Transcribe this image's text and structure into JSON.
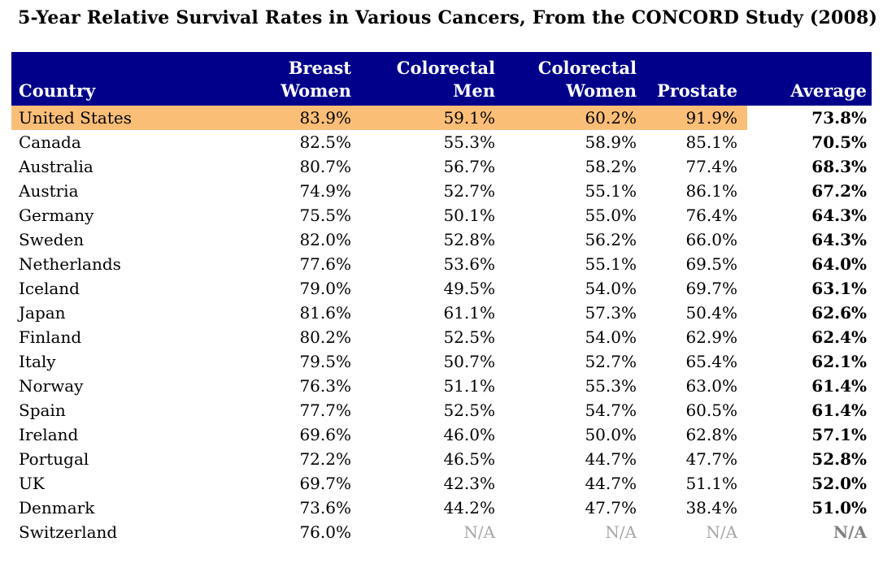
{
  "title": "5-Year Relative Survival Rates in Various Cancers, From the CONCORD Study (2008)",
  "colors": {
    "header_bg": "#00008B",
    "header_text": "#FFFFFF",
    "highlight_row_bg": "#FBBE77",
    "na_text": "#A6A6A6",
    "na_average_text": "#808080",
    "body_text": "#000000"
  },
  "chart_data": {
    "type": "table",
    "title": "5-Year Relative Survival Rates in Various Cancers, From the CONCORD Study (2008)",
    "columns": [
      {
        "key": "country",
        "lines": [
          "Country"
        ]
      },
      {
        "key": "breast-women",
        "lines": [
          "Breast",
          "Women"
        ]
      },
      {
        "key": "colorectal-men",
        "lines": [
          "Colorectal",
          "Men"
        ]
      },
      {
        "key": "colorectal-women",
        "lines": [
          "Colorectal",
          "Women"
        ]
      },
      {
        "key": "prostate",
        "lines": [
          "Prostate"
        ]
      },
      {
        "key": "average",
        "lines": [
          "Average"
        ]
      }
    ],
    "rows": [
      {
        "country": "United States",
        "values": [
          "83.9%",
          "59.1%",
          "60.2%",
          "91.9%",
          "73.8%"
        ],
        "highlight": true
      },
      {
        "country": "Canada",
        "values": [
          "82.5%",
          "55.3%",
          "58.9%",
          "85.1%",
          "70.5%"
        ],
        "highlight": false
      },
      {
        "country": "Australia",
        "values": [
          "80.7%",
          "56.7%",
          "58.2%",
          "77.4%",
          "68.3%"
        ],
        "highlight": false
      },
      {
        "country": "Austria",
        "values": [
          "74.9%",
          "52.7%",
          "55.1%",
          "86.1%",
          "67.2%"
        ],
        "highlight": false
      },
      {
        "country": "Germany",
        "values": [
          "75.5%",
          "50.1%",
          "55.0%",
          "76.4%",
          "64.3%"
        ],
        "highlight": false
      },
      {
        "country": "Sweden",
        "values": [
          "82.0%",
          "52.8%",
          "56.2%",
          "66.0%",
          "64.3%"
        ],
        "highlight": false
      },
      {
        "country": "Netherlands",
        "values": [
          "77.6%",
          "53.6%",
          "55.1%",
          "69.5%",
          "64.0%"
        ],
        "highlight": false
      },
      {
        "country": "Iceland",
        "values": [
          "79.0%",
          "49.5%",
          "54.0%",
          "69.7%",
          "63.1%"
        ],
        "highlight": false
      },
      {
        "country": "Japan",
        "values": [
          "81.6%",
          "61.1%",
          "57.3%",
          "50.4%",
          "62.6%"
        ],
        "highlight": false
      },
      {
        "country": "Finland",
        "values": [
          "80.2%",
          "52.5%",
          "54.0%",
          "62.9%",
          "62.4%"
        ],
        "highlight": false
      },
      {
        "country": "Italy",
        "values": [
          "79.5%",
          "50.7%",
          "52.7%",
          "65.4%",
          "62.1%"
        ],
        "highlight": false
      },
      {
        "country": "Norway",
        "values": [
          "76.3%",
          "51.1%",
          "55.3%",
          "63.0%",
          "61.4%"
        ],
        "highlight": false
      },
      {
        "country": "Spain",
        "values": [
          "77.7%",
          "52.5%",
          "54.7%",
          "60.5%",
          "61.4%"
        ],
        "highlight": false
      },
      {
        "country": "Ireland",
        "values": [
          "69.6%",
          "46.0%",
          "50.0%",
          "62.8%",
          "57.1%"
        ],
        "highlight": false
      },
      {
        "country": "Portugal",
        "values": [
          "72.2%",
          "46.5%",
          "44.7%",
          "47.7%",
          "52.8%"
        ],
        "highlight": false
      },
      {
        "country": "UK",
        "values": [
          "69.7%",
          "42.3%",
          "44.7%",
          "51.1%",
          "52.0%"
        ],
        "highlight": false
      },
      {
        "country": "Denmark",
        "values": [
          "73.6%",
          "44.2%",
          "47.7%",
          "38.4%",
          "51.0%"
        ],
        "highlight": false
      },
      {
        "country": "Switzerland",
        "values": [
          "76.0%",
          "N/A",
          "N/A",
          "N/A",
          "N/A"
        ],
        "highlight": false
      }
    ]
  }
}
